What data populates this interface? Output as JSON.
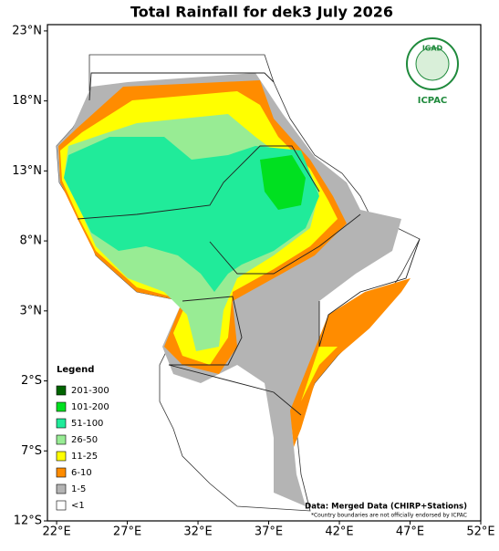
{
  "map": {
    "title": "Total Rainfall for dek3 July 2026",
    "xlim": [
      21.35,
      52
    ],
    "ylim": [
      -12,
      23.45
    ],
    "xticks": [
      {
        "value": 22,
        "label": "22°E"
      },
      {
        "value": 27,
        "label": "27°E"
      },
      {
        "value": 32,
        "label": "32°E"
      },
      {
        "value": 37,
        "label": "37°E"
      },
      {
        "value": 42,
        "label": "42°E"
      },
      {
        "value": 47,
        "label": "47°E"
      },
      {
        "value": 52,
        "label": "52°E"
      }
    ],
    "yticks": [
      {
        "value": 23,
        "label": "23°N"
      },
      {
        "value": 18,
        "label": "18°N"
      },
      {
        "value": 13,
        "label": "13°N"
      },
      {
        "value": 8,
        "label": "8°N"
      },
      {
        "value": 3,
        "label": "3°N"
      },
      {
        "value": -2,
        "label": "2°S"
      },
      {
        "value": -7,
        "label": "7°S"
      },
      {
        "value": -12,
        "label": "12°S"
      }
    ],
    "legend": {
      "title": "Legend",
      "items": [
        {
          "label": "201-300",
          "color": "#006400"
        },
        {
          "label": "101-200",
          "color": "#00e020"
        },
        {
          "label": "51-100",
          "color": "#20eb9a"
        },
        {
          "label": "26-50",
          "color": "#98ec94"
        },
        {
          "label": "11-25",
          "color": "#ffff00"
        },
        {
          "label": "6-10",
          "color": "#ff8c00"
        },
        {
          "label": "1-5",
          "color": "#b4b4b4"
        },
        {
          "label": "<1",
          "color": "#ffffff"
        }
      ]
    },
    "source": "Data: Merged Data (CHIRP+Stations)",
    "disclaimer": "*Country boundaries are not officially endorsed by ICPAC",
    "logo": {
      "name": "IGAD",
      "subtitle": "ICPAC"
    }
  }
}
